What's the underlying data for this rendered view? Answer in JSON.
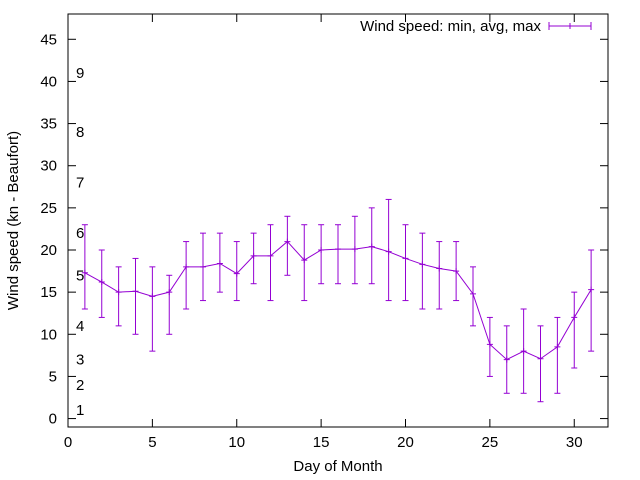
{
  "chart_data": {
    "type": "line",
    "title": "",
    "xlabel": "Day of Month",
    "ylabel": "Wind speed (kn - Beaufort)",
    "xlim": [
      0,
      32
    ],
    "ylim": [
      -1,
      48
    ],
    "x_ticks": [
      0,
      5,
      10,
      15,
      20,
      25,
      30
    ],
    "y_ticks": [
      0,
      5,
      10,
      15,
      20,
      25,
      30,
      35,
      40,
      45
    ],
    "grid": false,
    "legend_position": "top-right",
    "series": [
      {
        "name": "Wind speed: min, avg, max",
        "color": "#9400d3",
        "points": [
          {
            "x": 1,
            "avg": 17.3,
            "min": 13,
            "max": 23
          },
          {
            "x": 2,
            "avg": 16.2,
            "min": 12,
            "max": 20
          },
          {
            "x": 3,
            "avg": 15.0,
            "min": 11,
            "max": 18
          },
          {
            "x": 4,
            "avg": 15.1,
            "min": 10,
            "max": 19
          },
          {
            "x": 5,
            "avg": 14.5,
            "min": 8,
            "max": 18
          },
          {
            "x": 6,
            "avg": 15.0,
            "min": 10,
            "max": 17
          },
          {
            "x": 7,
            "avg": 18.0,
            "min": 13,
            "max": 21
          },
          {
            "x": 8,
            "avg": 18.0,
            "min": 14,
            "max": 22
          },
          {
            "x": 9,
            "avg": 18.4,
            "min": 15,
            "max": 22
          },
          {
            "x": 10,
            "avg": 17.2,
            "min": 14,
            "max": 21
          },
          {
            "x": 11,
            "avg": 19.3,
            "min": 16,
            "max": 22
          },
          {
            "x": 12,
            "avg": 19.3,
            "min": 14,
            "max": 23
          },
          {
            "x": 13,
            "avg": 21.0,
            "min": 17,
            "max": 24
          },
          {
            "x": 14,
            "avg": 18.8,
            "min": 14,
            "max": 23
          },
          {
            "x": 15,
            "avg": 20.0,
            "min": 16,
            "max": 23
          },
          {
            "x": 16,
            "avg": 20.1,
            "min": 16,
            "max": 23
          },
          {
            "x": 17,
            "avg": 20.1,
            "min": 16,
            "max": 24
          },
          {
            "x": 18,
            "avg": 20.4,
            "min": 16,
            "max": 25
          },
          {
            "x": 19,
            "avg": 19.8,
            "min": 14,
            "max": 26
          },
          {
            "x": 20,
            "avg": 19.0,
            "min": 14,
            "max": 23
          },
          {
            "x": 21,
            "avg": 18.3,
            "min": 13,
            "max": 22
          },
          {
            "x": 22,
            "avg": 17.8,
            "min": 13,
            "max": 21
          },
          {
            "x": 23,
            "avg": 17.5,
            "min": 14,
            "max": 21
          },
          {
            "x": 24,
            "avg": 14.8,
            "min": 11,
            "max": 18
          },
          {
            "x": 25,
            "avg": 8.8,
            "min": 5,
            "max": 12
          },
          {
            "x": 26,
            "avg": 7.0,
            "min": 3,
            "max": 11
          },
          {
            "x": 27,
            "avg": 8.0,
            "min": 3,
            "max": 13
          },
          {
            "x": 28,
            "avg": 7.1,
            "min": 2,
            "max": 11
          },
          {
            "x": 29,
            "avg": 8.5,
            "min": 3,
            "max": 12
          },
          {
            "x": 30,
            "avg": 12.0,
            "min": 6,
            "max": 15
          },
          {
            "x": 31,
            "avg": 15.3,
            "min": 8,
            "max": 20
          }
        ]
      }
    ],
    "beaufort_labels": [
      {
        "label": "1",
        "y": 1
      },
      {
        "label": "2",
        "y": 4
      },
      {
        "label": "3",
        "y": 7
      },
      {
        "label": "4",
        "y": 11
      },
      {
        "label": "5",
        "y": 17
      },
      {
        "label": "6",
        "y": 22
      },
      {
        "label": "7",
        "y": 28
      },
      {
        "label": "8",
        "y": 34
      },
      {
        "label": "9",
        "y": 41
      }
    ]
  }
}
